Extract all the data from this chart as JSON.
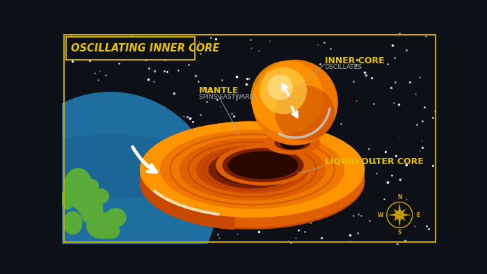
{
  "title": "OSCILLATING INNER CORE",
  "bg_color": "#0d1117",
  "border_color": "#c8a800",
  "title_color": "#e6c200",
  "label_color": "#e6c200",
  "sublabel_color": "#aaaaaa",
  "labels": {
    "mantle": "MANTLE",
    "mantle_sub": "SPINS EASTWARD",
    "inner_core": "INNER CORE",
    "inner_core_sub": "OSCILLATES",
    "outer_core": "LIQUID OUTER CORE"
  },
  "colors": {
    "orange1": "#ff9500",
    "orange2": "#f07800",
    "orange3": "#e06000",
    "orange4": "#c84800",
    "orange5": "#a03000",
    "orange_dark": "#7a2000",
    "orange_hole": "#5a1500",
    "orange_inner": "#8b2800",
    "yellow_bright": "#ffcc44",
    "earth_blue": "#1e6fa0",
    "earth_blue2": "#1a5f90",
    "earth_green": "#5aaa3a",
    "white": "#ffffff",
    "compass_gold": "#d4aa00"
  }
}
